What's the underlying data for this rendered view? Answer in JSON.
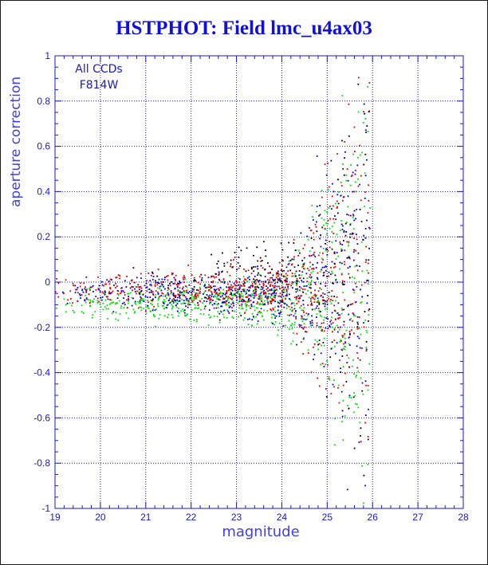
{
  "title": "HSTPHOT: Field lmc_u4ax03",
  "chart_data": {
    "type": "scatter",
    "title": "HSTPHOT: Field lmc_u4ax03",
    "xlabel": "magnitude",
    "ylabel": "aperture correction",
    "xlim": [
      19,
      28
    ],
    "ylim": [
      -1,
      1
    ],
    "x_ticks": [
      "19",
      "20",
      "21",
      "22",
      "23",
      "24",
      "25",
      "26",
      "27",
      "28"
    ],
    "y_ticks": [
      "-1",
      "-0.8",
      "-0.6",
      "-0.4",
      "-0.2",
      "0",
      "0.2",
      "0.4",
      "0.6",
      "0.8",
      "1"
    ],
    "grid": true,
    "legend_text": [
      "All CCDs",
      "F814W"
    ],
    "legend_placement": "top-left",
    "series_colors": {
      "red": "#e00000",
      "green": "#00e000",
      "blue": "#0000d0",
      "black": "#000000"
    },
    "series_offsets": {
      "red": -0.03,
      "green": -0.09,
      "blue": -0.05,
      "black": 0.0
    },
    "series_counts": {
      "red": 650,
      "green": 700,
      "blue": 650,
      "black": 200
    },
    "x_range_observed": [
      19.0,
      25.95
    ],
    "scatter_model": "aperture correction near 0 for magnitude below 23.5, widening to +/-0.9 toward magnitude 25.5; values generated procedurally (approximate)"
  },
  "colors": {
    "title": "#1010d8",
    "axis": "#1818c8",
    "grid": "#1818c8",
    "label": "#4040e0"
  }
}
